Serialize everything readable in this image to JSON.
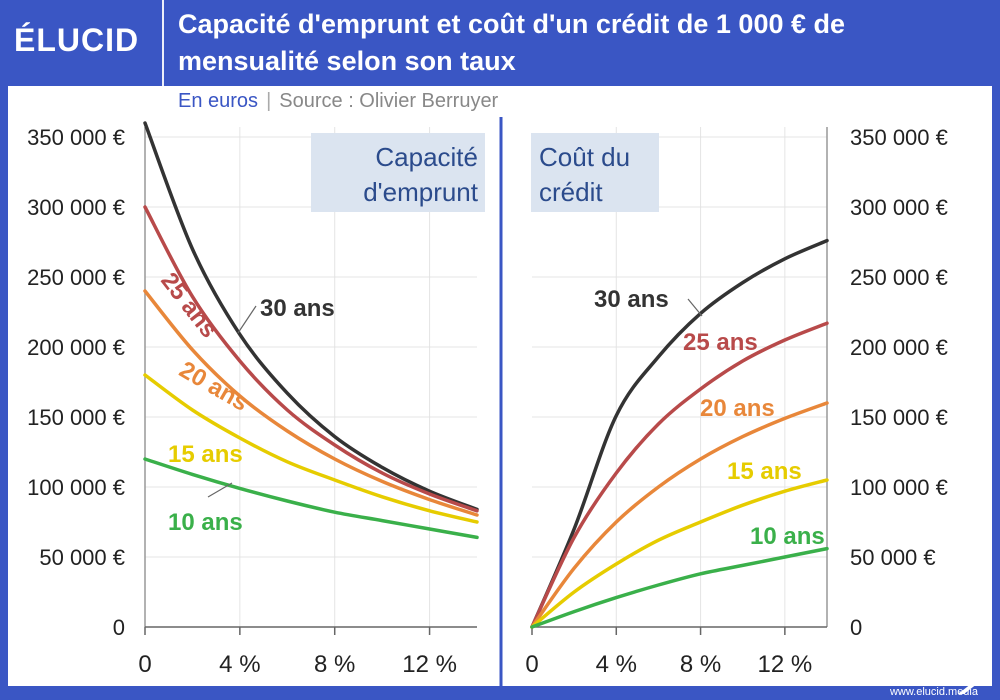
{
  "header": {
    "logo": "ÉLUCID",
    "title": "Capacité d'emprunt et coût d'un crédit de 1 000 € de mensualité selon son taux"
  },
  "subtitle": {
    "unit": "En euros",
    "separator": "|",
    "source": "Source : Olivier Berruyer"
  },
  "footer": {
    "site": "www.elucid.media"
  },
  "colors": {
    "brand": "#3a56c4",
    "box": "#dbe4f0",
    "box_text": "#2b4b8c"
  },
  "chart_data": [
    {
      "type": "line",
      "title": "Capacité d'emprunt",
      "x_ticks": [
        "0",
        "4 %",
        "8 %",
        "12 %"
      ],
      "y_ticks": [
        "0",
        "50 000 €",
        "100 000 €",
        "150 000 €",
        "200 000 €",
        "250 000 €",
        "300 000 €",
        "350 000 €"
      ],
      "xlim": [
        0,
        14
      ],
      "ylim": [
        0,
        350000
      ],
      "series": [
        {
          "name": "30 ans",
          "color": "#333333",
          "x": [
            0,
            2,
            4,
            6,
            8,
            10,
            12,
            14
          ],
          "y": [
            360000,
            270000,
            209000,
            167000,
            136000,
            114000,
            97000,
            84000
          ]
        },
        {
          "name": "25 ans",
          "color": "#b84a4a",
          "x": [
            0,
            2,
            4,
            6,
            8,
            10,
            12,
            14
          ],
          "y": [
            300000,
            236000,
            190000,
            155000,
            130000,
            110000,
            95000,
            83000
          ]
        },
        {
          "name": "20 ans",
          "color": "#e8873a",
          "x": [
            0,
            2,
            4,
            6,
            8,
            10,
            12,
            14
          ],
          "y": [
            240000,
            198000,
            165000,
            140000,
            120000,
            104000,
            91000,
            80000
          ]
        },
        {
          "name": "15 ans",
          "color": "#e6cc00",
          "x": [
            0,
            2,
            4,
            6,
            8,
            10,
            12,
            14
          ],
          "y": [
            180000,
            155000,
            135000,
            118000,
            105000,
            93000,
            83000,
            75000
          ]
        },
        {
          "name": "10 ans",
          "color": "#3ab04a",
          "x": [
            0,
            2,
            4,
            6,
            8,
            10,
            12,
            14
          ],
          "y": [
            120000,
            109000,
            99000,
            90000,
            82000,
            76000,
            70000,
            64000
          ]
        }
      ]
    },
    {
      "type": "line",
      "title": "Coût du crédit",
      "x_ticks": [
        "0",
        "4 %",
        "8 %",
        "12 %"
      ],
      "y_ticks": [
        "0",
        "50 000 €",
        "100 000 €",
        "150 000 €",
        "200 000 €",
        "250 000 €",
        "300 000 €",
        "350 000 €"
      ],
      "xlim": [
        0,
        14
      ],
      "ylim": [
        0,
        350000
      ],
      "series": [
        {
          "name": "30 ans",
          "color": "#333333",
          "x": [
            0,
            2,
            4,
            6,
            8,
            10,
            12,
            14
          ],
          "y": [
            0,
            70000,
            151000,
            193000,
            224000,
            246000,
            263000,
            276000
          ]
        },
        {
          "name": "25 ans",
          "color": "#b84a4a",
          "x": [
            0,
            2,
            4,
            6,
            8,
            10,
            12,
            14
          ],
          "y": [
            0,
            64000,
            110000,
            145000,
            170000,
            190000,
            205000,
            217000
          ]
        },
        {
          "name": "20 ans",
          "color": "#e8873a",
          "x": [
            0,
            2,
            4,
            6,
            8,
            10,
            12,
            14
          ],
          "y": [
            0,
            42000,
            75000,
            100000,
            120000,
            136000,
            149000,
            160000
          ]
        },
        {
          "name": "15 ans",
          "color": "#e6cc00",
          "x": [
            0,
            2,
            4,
            6,
            8,
            10,
            12,
            14
          ],
          "y": [
            0,
            25000,
            45000,
            62000,
            75000,
            87000,
            97000,
            105000
          ]
        },
        {
          "name": "10 ans",
          "color": "#3ab04a",
          "x": [
            0,
            2,
            4,
            6,
            8,
            10,
            12,
            14
          ],
          "y": [
            0,
            11000,
            21000,
            30000,
            38000,
            44000,
            50000,
            56000
          ]
        }
      ]
    }
  ]
}
